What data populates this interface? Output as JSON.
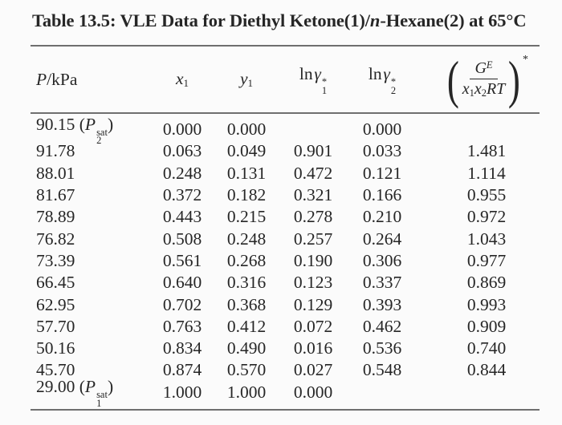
{
  "title": {
    "part1": "Table 13.5: VLE Data for Diethyl Ketone(1)/",
    "italic_n": "n",
    "part2": "-Hexane(2) at 65°C"
  },
  "header": {
    "p_col": {
      "symbol": "P",
      "unit": "/kPa"
    },
    "x1_col": {
      "base": "x",
      "sub": "1"
    },
    "y1_col": {
      "base": "y",
      "sub": "1"
    },
    "ln_gamma1_col": {
      "fn": "ln",
      "symbol": "γ",
      "sup": "*",
      "sub": "1"
    },
    "ln_gamma2_col": {
      "fn": "ln",
      "symbol": "γ",
      "sup": "*",
      "sub": "2"
    },
    "ge_col": {
      "open_paren": "(",
      "numerator_base": "G",
      "numerator_sup": "E",
      "den_x_base": "x",
      "den_x1_sub": "1",
      "den_x2_sub": "2",
      "den_rt": "RT",
      "close_paren": ")",
      "outer_sup": "*"
    }
  },
  "rows": [
    {
      "p": "90.15",
      "p_note": {
        "open": "(",
        "symbol": "P",
        "sup": "sat",
        "sub": "2",
        "close": ")"
      },
      "x1": "0.000",
      "y1": "0.000",
      "ln_g1": "",
      "ln_g2": "0.000",
      "ge": ""
    },
    {
      "p": "91.78",
      "x1": "0.063",
      "y1": "0.049",
      "ln_g1": "0.901",
      "ln_g2": "0.033",
      "ge": "1.481"
    },
    {
      "p": "88.01",
      "x1": "0.248",
      "y1": "0.131",
      "ln_g1": "0.472",
      "ln_g2": "0.121",
      "ge": "1.114"
    },
    {
      "p": "81.67",
      "x1": "0.372",
      "y1": "0.182",
      "ln_g1": "0.321",
      "ln_g2": "0.166",
      "ge": "0.955"
    },
    {
      "p": "78.89",
      "x1": "0.443",
      "y1": "0.215",
      "ln_g1": "0.278",
      "ln_g2": "0.210",
      "ge": "0.972"
    },
    {
      "p": "76.82",
      "x1": "0.508",
      "y1": "0.248",
      "ln_g1": "0.257",
      "ln_g2": "0.264",
      "ge": "1.043"
    },
    {
      "p": "73.39",
      "x1": "0.561",
      "y1": "0.268",
      "ln_g1": "0.190",
      "ln_g2": "0.306",
      "ge": "0.977"
    },
    {
      "p": "66.45",
      "x1": "0.640",
      "y1": "0.316",
      "ln_g1": "0.123",
      "ln_g2": "0.337",
      "ge": "0.869"
    },
    {
      "p": "62.95",
      "x1": "0.702",
      "y1": "0.368",
      "ln_g1": "0.129",
      "ln_g2": "0.393",
      "ge": "0.993"
    },
    {
      "p": "57.70",
      "x1": "0.763",
      "y1": "0.412",
      "ln_g1": "0.072",
      "ln_g2": "0.462",
      "ge": "0.909"
    },
    {
      "p": "50.16",
      "x1": "0.834",
      "y1": "0.490",
      "ln_g1": "0.016",
      "ln_g2": "0.536",
      "ge": "0.740"
    },
    {
      "p": "45.70",
      "x1": "0.874",
      "y1": "0.570",
      "ln_g1": "0.027",
      "ln_g2": "0.548",
      "ge": "0.844"
    },
    {
      "p": "29.00",
      "p_note": {
        "open": "(",
        "symbol": "P",
        "sup": "sat",
        "sub": "1",
        "close": ")"
      },
      "x1": "1.000",
      "y1": "1.000",
      "ln_g1": "0.000",
      "ln_g2": "",
      "ge": ""
    }
  ],
  "colors": {
    "text": "#262626",
    "rule": "#6f6f6f",
    "background": "#fbfbfb"
  }
}
